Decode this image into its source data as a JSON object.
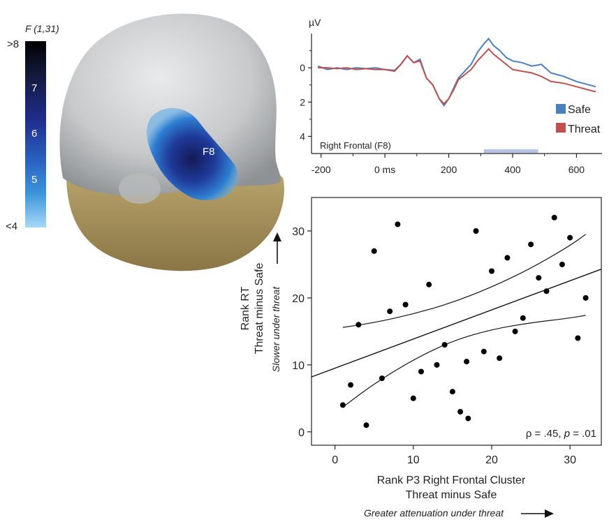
{
  "colorbar": {
    "title": "F (1,31)",
    "ticks": [
      ">8",
      "7",
      "6",
      "5",
      "<4"
    ],
    "colors": [
      "#000000",
      "#141a3c",
      "#1f2d8c",
      "#2b63c4",
      "#3c96dc",
      "#a8d8f5"
    ]
  },
  "head": {
    "electrode_label": "F8",
    "colors": {
      "skull": "#c9cbcd",
      "face": "#a8925a",
      "activation": "#1b3f9a"
    }
  },
  "erp": {
    "chart_data": {
      "type": "line",
      "ylabel": "µV",
      "panel_label": "Right Frontal (F8)",
      "x_ticks": [
        "-200",
        "0 ms",
        "200",
        "400",
        "600"
      ],
      "x_tick_values": [
        -200,
        0,
        200,
        400,
        600
      ],
      "y_ticks": [
        "0",
        "2",
        "4"
      ],
      "y_tick_values": [
        0,
        2,
        4
      ],
      "y_inverted": true,
      "xlim": [
        -230,
        680
      ],
      "ylim": [
        -2,
        5
      ],
      "shaded_window": [
        310,
        480
      ],
      "series": [
        {
          "name": "Safe",
          "color": "#4a7fc1",
          "x": [
            -210,
            -180,
            -150,
            -120,
            -90,
            -60,
            -30,
            0,
            30,
            50,
            70,
            90,
            110,
            130,
            150,
            170,
            185,
            200,
            215,
            230,
            250,
            270,
            290,
            310,
            325,
            340,
            360,
            380,
            400,
            430,
            460,
            490,
            520,
            560,
            600,
            640,
            660
          ],
          "y": [
            -0.1,
            0.1,
            0.0,
            0.1,
            0.0,
            0.05,
            0.0,
            0.1,
            0.15,
            -0.2,
            -0.7,
            -0.3,
            -0.5,
            0.6,
            1.0,
            1.8,
            2.2,
            1.8,
            1.2,
            0.6,
            0.2,
            -0.2,
            -0.9,
            -1.4,
            -1.7,
            -1.3,
            -1.0,
            -0.6,
            -0.4,
            -0.3,
            -0.1,
            -0.2,
            0.3,
            0.5,
            0.8,
            1.0,
            1.1
          ]
        },
        {
          "name": "Threat",
          "color": "#c0504d",
          "x": [
            -210,
            -180,
            -150,
            -120,
            -90,
            -60,
            -30,
            0,
            30,
            50,
            70,
            90,
            110,
            130,
            150,
            170,
            185,
            200,
            215,
            230,
            250,
            270,
            290,
            310,
            325,
            340,
            360,
            380,
            400,
            430,
            460,
            490,
            520,
            560,
            600,
            640,
            660
          ],
          "y": [
            0.0,
            0.0,
            0.05,
            0.0,
            0.1,
            0.05,
            0.1,
            0.1,
            0.2,
            -0.2,
            -0.7,
            -0.3,
            -0.4,
            0.6,
            1.0,
            1.8,
            2.1,
            1.8,
            1.3,
            0.7,
            0.4,
            0.1,
            -0.4,
            -0.8,
            -1.1,
            -0.8,
            -0.5,
            -0.2,
            0.1,
            0.2,
            0.3,
            0.5,
            0.8,
            0.9,
            1.1,
            1.3,
            1.4
          ]
        }
      ]
    }
  },
  "scatter": {
    "chart_data": {
      "type": "scatter",
      "xlabel": [
        "Rank P3 Right Frontal Cluster",
        "Threat minus Safe"
      ],
      "ylabel": [
        "Rank RT",
        "Threat minus Safe"
      ],
      "x_ticks": [
        0,
        10,
        20,
        30
      ],
      "y_ticks": [
        0,
        10,
        20,
        30
      ],
      "xlim": [
        -3,
        34
      ],
      "ylim": [
        -2,
        35
      ],
      "annotation": {
        "rho": "ρ = .45, ",
        "p_symbol": "p",
        "p_value": " = .01"
      },
      "y_arrow_label": "Slower under threat",
      "x_arrow_label": "Greater attenuation under threat",
      "points": [
        {
          "x": 1,
          "y": 4
        },
        {
          "x": 2,
          "y": 7
        },
        {
          "x": 3,
          "y": 16
        },
        {
          "x": 4,
          "y": 1
        },
        {
          "x": 5,
          "y": 27
        },
        {
          "x": 6,
          "y": 8
        },
        {
          "x": 7,
          "y": 18
        },
        {
          "x": 8,
          "y": 31
        },
        {
          "x": 9,
          "y": 19
        },
        {
          "x": 10,
          "y": 5
        },
        {
          "x": 11,
          "y": 9
        },
        {
          "x": 12,
          "y": 22
        },
        {
          "x": 13,
          "y": 10
        },
        {
          "x": 14,
          "y": 13
        },
        {
          "x": 15,
          "y": 6
        },
        {
          "x": 16,
          "y": 3
        },
        {
          "x": 16.8,
          "y": 10.5
        },
        {
          "x": 17,
          "y": 2
        },
        {
          "x": 18,
          "y": 30
        },
        {
          "x": 19,
          "y": 12
        },
        {
          "x": 20,
          "y": 24
        },
        {
          "x": 21,
          "y": 11
        },
        {
          "x": 22,
          "y": 26
        },
        {
          "x": 23,
          "y": 15
        },
        {
          "x": 24,
          "y": 17
        },
        {
          "x": 25,
          "y": 28
        },
        {
          "x": 26,
          "y": 23
        },
        {
          "x": 27,
          "y": 21
        },
        {
          "x": 28,
          "y": 32
        },
        {
          "x": 29,
          "y": 25
        },
        {
          "x": 30,
          "y": 29
        },
        {
          "x": 31,
          "y": 14
        },
        {
          "x": 32,
          "y": 20
        }
      ],
      "fit_line": {
        "x": [
          -3,
          34
        ],
        "y": [
          8.2,
          24.3
        ]
      },
      "ci_upper": {
        "x": [
          1,
          5,
          10,
          15,
          20,
          25,
          30,
          32
        ],
        "y": [
          15.6,
          16.3,
          17.6,
          19.3,
          21.6,
          24.4,
          27.8,
          29.5
        ]
      },
      "ci_lower": {
        "x": [
          1,
          5,
          10,
          15,
          20,
          25,
          30,
          32
        ],
        "y": [
          3.7,
          7.2,
          10.8,
          13.6,
          15.3,
          16.3,
          17.0,
          17.4
        ]
      }
    }
  }
}
